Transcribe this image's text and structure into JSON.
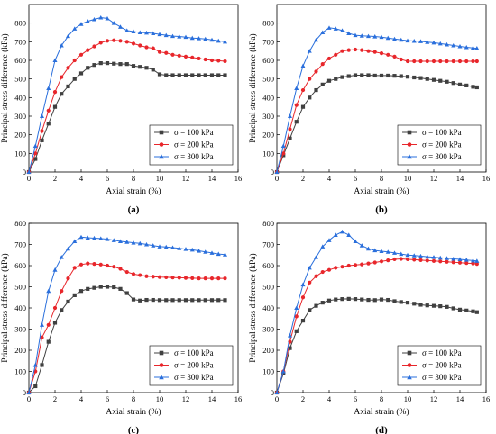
{
  "chart_data": [
    {
      "type": "line",
      "panel_label": "(a)",
      "xlabel": "Axial strain (%)",
      "ylabel": "Principal stress difference (kPa)",
      "xlim": [
        0,
        16
      ],
      "ylim": [
        0,
        900
      ],
      "xticks": [
        0,
        2,
        4,
        6,
        8,
        10,
        12,
        14,
        16
      ],
      "yticks": [
        0,
        100,
        200,
        300,
        400,
        500,
        600,
        700,
        800
      ],
      "legend_position": "bottom-right",
      "series": [
        {
          "name": "σ = 100 kPa",
          "color": "#404040",
          "marker": "square",
          "x": [
            0,
            0.5,
            1.0,
            1.5,
            2.0,
            2.5,
            3.0,
            3.5,
            4.0,
            4.5,
            5.0,
            5.5,
            6.0,
            6.5,
            7.0,
            7.5,
            8.0,
            8.5,
            9.0,
            9.5,
            10.0,
            10.5,
            11.0,
            11.5,
            12.0,
            12.5,
            13.0,
            13.5,
            14.0,
            14.5,
            15.0
          ],
          "y": [
            0,
            70,
            170,
            260,
            350,
            420,
            460,
            500,
            530,
            560,
            575,
            585,
            585,
            582,
            580,
            580,
            570,
            565,
            560,
            550,
            525,
            520,
            520,
            520,
            520,
            520,
            520,
            520,
            520,
            520,
            520
          ]
        },
        {
          "name": "σ = 200 kPa",
          "color": "#e8262b",
          "marker": "circle",
          "x": [
            0,
            0.5,
            1.0,
            1.5,
            2.0,
            2.5,
            3.0,
            3.5,
            4.0,
            4.5,
            5.0,
            5.5,
            6.0,
            6.5,
            7.0,
            7.5,
            8.0,
            8.5,
            9.0,
            9.5,
            10.0,
            10.5,
            11.0,
            11.5,
            12.0,
            12.5,
            13.0,
            13.5,
            14.0,
            14.5,
            15.0
          ],
          "y": [
            0,
            100,
            220,
            330,
            430,
            510,
            560,
            600,
            630,
            655,
            675,
            695,
            705,
            708,
            705,
            700,
            690,
            680,
            670,
            665,
            645,
            640,
            630,
            625,
            620,
            615,
            610,
            605,
            600,
            598,
            595
          ]
        },
        {
          "name": "σ = 300 kPa",
          "color": "#2a6fdc",
          "marker": "triangle",
          "x": [
            0,
            0.5,
            1.0,
            1.5,
            2.0,
            2.5,
            3.0,
            3.5,
            4.0,
            4.5,
            5.0,
            5.5,
            6.0,
            6.5,
            7.0,
            7.5,
            8.0,
            8.5,
            9.0,
            9.5,
            10.0,
            10.5,
            11.0,
            11.5,
            12.0,
            12.5,
            13.0,
            13.5,
            14.0,
            14.5,
            15.0
          ],
          "y": [
            0,
            140,
            300,
            450,
            600,
            680,
            730,
            770,
            795,
            810,
            820,
            830,
            825,
            800,
            780,
            760,
            755,
            750,
            748,
            745,
            740,
            735,
            730,
            728,
            725,
            720,
            718,
            715,
            710,
            705,
            700
          ]
        }
      ]
    },
    {
      "type": "line",
      "panel_label": "(b)",
      "xlabel": "Axial strain (%)",
      "ylabel": "Principal stress difference (kPa)",
      "xlim": [
        0,
        16
      ],
      "ylim": [
        0,
        900
      ],
      "xticks": [
        0,
        2,
        4,
        6,
        8,
        10,
        12,
        14,
        16
      ],
      "yticks": [
        0,
        100,
        200,
        300,
        400,
        500,
        600,
        700,
        800
      ],
      "legend_position": "bottom-right",
      "series": [
        {
          "name": "σ = 100 kPa",
          "color": "#404040",
          "marker": "square",
          "x": [
            0,
            0.5,
            1.0,
            1.5,
            2.0,
            2.5,
            3.0,
            3.5,
            4.0,
            4.5,
            5.0,
            5.5,
            6.0,
            6.5,
            7.0,
            7.5,
            8.0,
            8.5,
            9.0,
            9.5,
            10.0,
            10.5,
            11.0,
            11.5,
            12.0,
            12.5,
            13.0,
            13.5,
            14.0,
            14.5,
            15.0,
            15.3
          ],
          "y": [
            0,
            90,
            180,
            270,
            350,
            400,
            440,
            470,
            490,
            500,
            510,
            515,
            520,
            520,
            520,
            518,
            518,
            518,
            517,
            515,
            512,
            508,
            505,
            500,
            495,
            490,
            485,
            478,
            470,
            465,
            458,
            455
          ]
        },
        {
          "name": "σ = 200 kPa",
          "color": "#e8262b",
          "marker": "circle",
          "x": [
            0,
            0.5,
            1.0,
            1.5,
            2.0,
            2.5,
            3.0,
            3.5,
            4.0,
            4.5,
            5.0,
            5.5,
            6.0,
            6.5,
            7.0,
            7.5,
            8.0,
            8.5,
            9.0,
            9.5,
            10.0,
            10.5,
            11.0,
            11.5,
            12.0,
            12.5,
            13.0,
            13.5,
            14.0,
            14.5,
            15.0,
            15.3
          ],
          "y": [
            0,
            100,
            230,
            360,
            440,
            500,
            540,
            580,
            610,
            630,
            650,
            655,
            658,
            655,
            650,
            645,
            638,
            630,
            620,
            605,
            595,
            595,
            595,
            595,
            595,
            595,
            595,
            595,
            595,
            595,
            595,
            595
          ]
        },
        {
          "name": "σ = 300 kPa",
          "color": "#2a6fdc",
          "marker": "triangle",
          "x": [
            0,
            0.5,
            1.0,
            1.5,
            2.0,
            2.5,
            3.0,
            3.5,
            4.0,
            4.5,
            5.0,
            5.5,
            6.0,
            6.5,
            7.0,
            7.5,
            8.0,
            8.5,
            9.0,
            9.5,
            10.0,
            10.5,
            11.0,
            11.5,
            12.0,
            12.5,
            13.0,
            13.5,
            14.0,
            14.5,
            15.0,
            15.3
          ],
          "y": [
            0,
            140,
            300,
            450,
            570,
            650,
            710,
            750,
            775,
            770,
            760,
            745,
            735,
            732,
            730,
            728,
            725,
            720,
            715,
            710,
            706,
            704,
            702,
            698,
            695,
            690,
            685,
            680,
            675,
            670,
            667,
            665
          ]
        }
      ]
    },
    {
      "type": "line",
      "panel_label": "(c)",
      "xlabel": "Axial strain (%)",
      "ylabel": "Principal stress difference (kPa)",
      "xlim": [
        0,
        16
      ],
      "ylim": [
        0,
        800
      ],
      "xticks": [
        0,
        2,
        4,
        6,
        8,
        10,
        12,
        14,
        16
      ],
      "yticks": [
        0,
        100,
        200,
        300,
        400,
        500,
        600,
        700,
        800
      ],
      "legend_position": "bottom-right",
      "series": [
        {
          "name": "σ = 100 kPa",
          "color": "#404040",
          "marker": "square",
          "x": [
            0,
            0.5,
            1.0,
            1.5,
            2.0,
            2.5,
            3.0,
            3.5,
            4.0,
            4.5,
            5.0,
            5.5,
            6.0,
            6.5,
            7.0,
            7.5,
            8.0,
            8.5,
            9.0,
            9.5,
            10.0,
            10.5,
            11.0,
            11.5,
            12.0,
            12.5,
            13.0,
            13.5,
            14.0,
            14.5,
            15.0
          ],
          "y": [
            0,
            30,
            130,
            240,
            330,
            390,
            430,
            460,
            480,
            490,
            495,
            500,
            500,
            498,
            490,
            470,
            440,
            435,
            438,
            438,
            437,
            437,
            437,
            437,
            437,
            437,
            437,
            437,
            437,
            437,
            437
          ]
        },
        {
          "name": "σ = 200 kPa",
          "color": "#e8262b",
          "marker": "circle",
          "x": [
            0,
            0.5,
            1.0,
            1.5,
            2.0,
            2.5,
            3.0,
            3.5,
            4.0,
            4.5,
            5.0,
            5.5,
            6.0,
            6.5,
            7.0,
            7.5,
            8.0,
            8.5,
            9.0,
            9.5,
            10.0,
            10.5,
            11.0,
            11.5,
            12.0,
            12.5,
            13.0,
            13.5,
            14.0,
            14.5,
            15.0
          ],
          "y": [
            0,
            100,
            260,
            320,
            400,
            480,
            540,
            590,
            605,
            610,
            608,
            605,
            600,
            595,
            585,
            570,
            560,
            555,
            550,
            548,
            546,
            545,
            544,
            543,
            542,
            541,
            540,
            540,
            540,
            540,
            540
          ]
        },
        {
          "name": "σ = 300 kPa",
          "color": "#2a6fdc",
          "marker": "triangle",
          "x": [
            0,
            0.5,
            1.0,
            1.5,
            2.0,
            2.5,
            3.0,
            3.5,
            4.0,
            4.5,
            5.0,
            5.5,
            6.0,
            6.5,
            7.0,
            7.5,
            8.0,
            8.5,
            9.0,
            9.5,
            10.0,
            10.5,
            11.0,
            11.5,
            12.0,
            12.5,
            13.0,
            13.5,
            14.0,
            14.5,
            15.0
          ],
          "y": [
            0,
            130,
            320,
            480,
            580,
            640,
            680,
            715,
            735,
            732,
            730,
            728,
            725,
            720,
            715,
            712,
            708,
            705,
            700,
            695,
            690,
            688,
            685,
            682,
            678,
            675,
            670,
            665,
            660,
            655,
            652
          ]
        }
      ]
    },
    {
      "type": "line",
      "panel_label": "(d)",
      "xlabel": "Axial strain (%)",
      "ylabel": "Principal stress difference (kPa)",
      "xlim": [
        0,
        16
      ],
      "ylim": [
        0,
        800
      ],
      "xticks": [
        0,
        2,
        4,
        6,
        8,
        10,
        12,
        14,
        16
      ],
      "yticks": [
        0,
        100,
        200,
        300,
        400,
        500,
        600,
        700,
        800
      ],
      "legend_position": "bottom-right",
      "series": [
        {
          "name": "σ = 100 kPa",
          "color": "#404040",
          "marker": "square",
          "x": [
            0,
            0.5,
            1.0,
            1.5,
            2.0,
            2.5,
            3.0,
            3.5,
            4.0,
            4.5,
            5.0,
            5.5,
            6.0,
            6.5,
            7.0,
            7.5,
            8.0,
            8.5,
            9.0,
            9.5,
            10.0,
            10.5,
            11.0,
            11.5,
            12.0,
            12.5,
            13.0,
            13.5,
            14.0,
            14.5,
            15.0,
            15.3
          ],
          "y": [
            0,
            90,
            210,
            290,
            340,
            390,
            410,
            425,
            435,
            440,
            442,
            443,
            442,
            440,
            438,
            437,
            440,
            438,
            432,
            428,
            425,
            420,
            415,
            412,
            410,
            408,
            405,
            398,
            392,
            388,
            384,
            380
          ]
        },
        {
          "name": "σ = 200 kPa",
          "color": "#e8262b",
          "marker": "circle",
          "x": [
            0,
            0.5,
            1.0,
            1.5,
            2.0,
            2.5,
            3.0,
            3.5,
            4.0,
            4.5,
            5.0,
            5.5,
            6.0,
            6.5,
            7.0,
            7.5,
            8.0,
            8.5,
            9.0,
            9.5,
            10.0,
            10.5,
            11.0,
            11.5,
            12.0,
            12.5,
            13.0,
            13.5,
            14.0,
            14.5,
            15.0,
            15.3
          ],
          "y": [
            0,
            100,
            240,
            360,
            450,
            520,
            550,
            570,
            580,
            590,
            595,
            600,
            603,
            606,
            610,
            615,
            620,
            625,
            630,
            632,
            630,
            628,
            626,
            624,
            622,
            620,
            618,
            616,
            614,
            612,
            610,
            608
          ]
        },
        {
          "name": "σ = 300 kPa",
          "color": "#2a6fdc",
          "marker": "triangle",
          "x": [
            0,
            0.5,
            1.0,
            1.5,
            2.0,
            2.5,
            3.0,
            3.5,
            4.0,
            4.5,
            5.0,
            5.5,
            6.0,
            6.5,
            7.0,
            7.5,
            8.0,
            8.5,
            9.0,
            9.5,
            10.0,
            10.5,
            11.0,
            11.5,
            12.0,
            12.5,
            13.0,
            13.5,
            14.0,
            14.5,
            15.0,
            15.3
          ],
          "y": [
            0,
            100,
            270,
            400,
            510,
            590,
            640,
            690,
            720,
            745,
            760,
            745,
            715,
            695,
            680,
            672,
            668,
            665,
            660,
            655,
            650,
            648,
            645,
            642,
            640,
            637,
            635,
            632,
            630,
            627,
            624,
            622
          ]
        }
      ]
    }
  ]
}
